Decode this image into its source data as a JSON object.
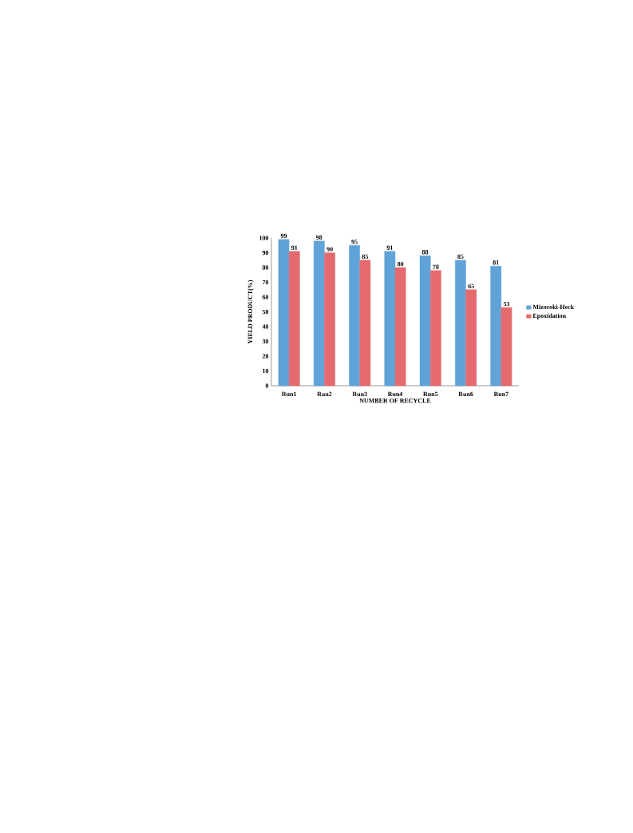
{
  "chart_data": {
    "type": "bar",
    "xlabel": "NUMBER OF RECYCLE",
    "ylabel": "YIELD PRODUCT(%)",
    "categories": [
      "Run1",
      "Run2",
      "Run3",
      "Run4",
      "Run5",
      "Run6",
      "Run7"
    ],
    "series": [
      {
        "name": "Mizoroki-Heck",
        "color": "#5fa3d9",
        "values": [
          99,
          98,
          95,
          91,
          88,
          85,
          81
        ]
      },
      {
        "name": "Epoxidation",
        "color": "#e56a6e",
        "values": [
          91,
          90,
          85,
          80,
          78,
          65,
          53
        ]
      }
    ],
    "ylim": [
      0,
      100
    ],
    "yticks": [
      0,
      10,
      20,
      30,
      40,
      50,
      60,
      70,
      80,
      90,
      100
    ],
    "data_labels": true,
    "legend": "right",
    "grid": false
  }
}
